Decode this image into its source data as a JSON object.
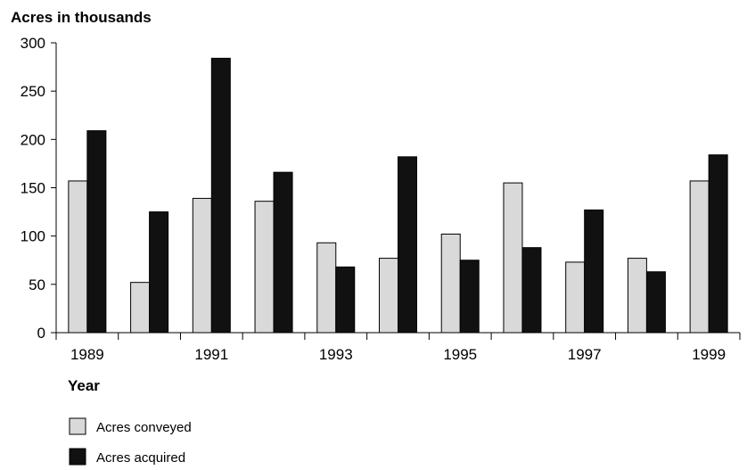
{
  "chart_data": {
    "type": "bar",
    "title": "",
    "ylabel": "Acres in thousands",
    "xlabel": "Year",
    "ylim": [
      0,
      300
    ],
    "yticks": [
      0,
      50,
      100,
      150,
      200,
      250,
      300
    ],
    "categories": [
      "1989",
      "1990",
      "1991",
      "1992",
      "1993",
      "1994",
      "1995",
      "1996",
      "1997",
      "1998",
      "1999"
    ],
    "xtick_labels": [
      "1989",
      "",
      "1991",
      "",
      "1993",
      "",
      "1995",
      "",
      "1997",
      "",
      "1999"
    ],
    "series": [
      {
        "name": "Acres conveyed",
        "color": "#d9d9d9",
        "values": [
          157,
          52,
          139,
          136,
          93,
          77,
          102,
          155,
          73,
          77,
          157
        ]
      },
      {
        "name": "Acres acquired",
        "color": "#111111",
        "values": [
          209,
          125,
          284,
          166,
          68,
          182,
          75,
          88,
          127,
          63,
          184
        ]
      }
    ],
    "grid": false,
    "legend_position": "bottom-left"
  }
}
